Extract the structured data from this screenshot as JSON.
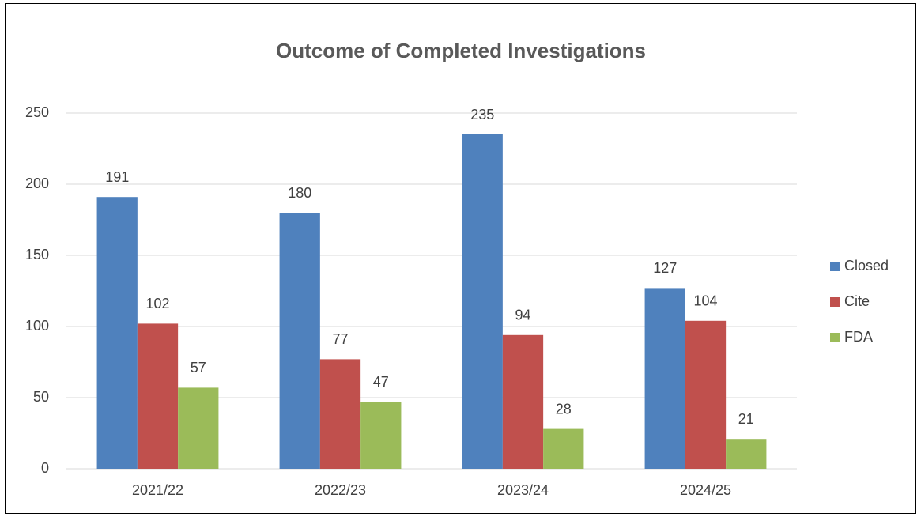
{
  "chart_data": {
    "type": "bar",
    "title": "Outcome of Completed Investigations",
    "categories": [
      "2021/22",
      "2022/23",
      "2023/24",
      "2024/25"
    ],
    "series": [
      {
        "name": "Closed",
        "color": "#4f81bd",
        "values": [
          191,
          180,
          235,
          127
        ]
      },
      {
        "name": "Cite",
        "color": "#c0504d",
        "values": [
          102,
          77,
          94,
          104
        ]
      },
      {
        "name": "FDA",
        "color": "#9bbb59",
        "values": [
          57,
          47,
          28,
          21
        ]
      }
    ],
    "ylim": [
      0,
      250
    ],
    "yticks": [
      0,
      50,
      100,
      150,
      200,
      250
    ],
    "grid": true,
    "legend": "right"
  }
}
